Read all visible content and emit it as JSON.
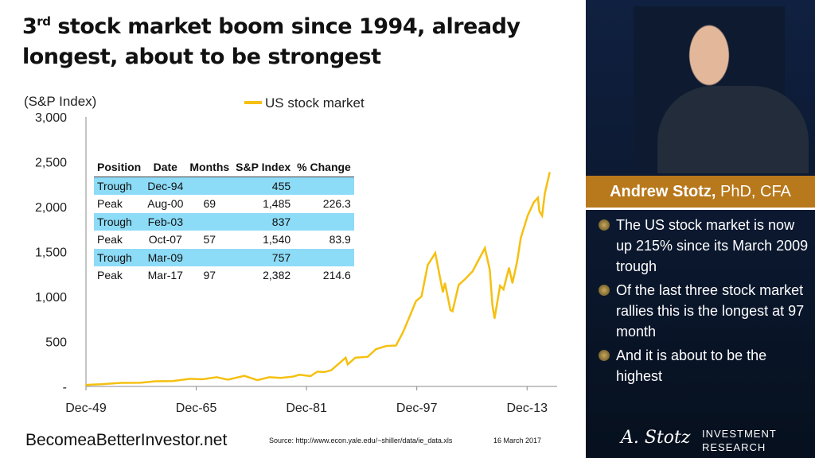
{
  "title": {
    "pre": "3",
    "sup": "rd",
    "rest": " stock market boom since 1994, already longest, about to be strongest"
  },
  "chart_data": {
    "type": "line",
    "ylabel": "(S&P Index)",
    "ylim": [
      0,
      3000
    ],
    "yticks": [
      "-",
      "500",
      "1,000",
      "1,500",
      "2,000",
      "2,500",
      "3,000"
    ],
    "xticks": [
      "Dec-49",
      "Dec-65",
      "Dec-81",
      "Dec-97",
      "Dec-13"
    ],
    "legend": "top-center",
    "color": "#f5c010",
    "series": [
      {
        "name": "US stock market",
        "x": [
          1949.9,
          1952,
          1955,
          1957.8,
          1960,
          1962.5,
          1965,
          1966.8,
          1968.9,
          1970.5,
          1972.9,
          1974.8,
          1976.5,
          1978.2,
          1980,
          1980.9,
          1982.5,
          1983.5,
          1984.5,
          1985.5,
          1987.6,
          1987.9,
          1989,
          1990.8,
          1992,
          1993.5,
          1994.9,
          1995.9,
          1997,
          1997.8,
          1998.6,
          1999.5,
          2000.6,
          2001.7,
          2002,
          2002.8,
          2003.1,
          2004,
          2005,
          2006,
          2007.8,
          2008.5,
          2008.9,
          2009.2,
          2010,
          2010.5,
          2011.3,
          2011.8,
          2012.5,
          2013,
          2014,
          2014.9,
          2015.5,
          2015.7,
          2016.1,
          2016.5,
          2017.2
        ],
        "y": [
          17,
          24,
          40,
          41,
          57,
          60,
          85,
          80,
          103,
          75,
          118,
          70,
          103,
          95,
          110,
          130,
          115,
          165,
          160,
          180,
          320,
          245,
          320,
          330,
          415,
          450,
          455,
          600,
          800,
          950,
          1000,
          1350,
          1485,
          1050,
          1150,
          850,
          837,
          1130,
          1200,
          1280,
          1540,
          1300,
          900,
          757,
          1120,
          1080,
          1320,
          1150,
          1400,
          1650,
          1900,
          2050,
          2100,
          1950,
          1900,
          2150,
          2382
        ]
      }
    ]
  },
  "legend_label": "US stock market",
  "table": {
    "headers": [
      "Position",
      "Date",
      "Months",
      "S&P Index",
      "% Change"
    ],
    "rows": [
      [
        "Trough",
        "Dec-94",
        "",
        "455",
        ""
      ],
      [
        "Peak",
        "Aug-00",
        "69",
        "1,485",
        "226.3"
      ],
      [
        "Trough",
        "Feb-03",
        "",
        "837",
        ""
      ],
      [
        "Peak",
        "Oct-07",
        "57",
        "1,540",
        "83.9"
      ],
      [
        "Trough",
        "Mar-09",
        "",
        "757",
        ""
      ],
      [
        "Peak",
        "Mar-17",
        "97",
        "2,382",
        "214.6"
      ]
    ]
  },
  "sidebar": {
    "name": "Andrew Stotz,",
    "credentials": " PhD, CFA",
    "bullets": [
      "The US stock market is now up 215% since its March 2009 trough",
      "Of the last three stock market rallies this is the longest at 97 month",
      "And it is about to be the highest"
    ],
    "logo": {
      "signature": "A. Stotz",
      "line1": "INVESTMENT",
      "line2": "RESEARCH"
    }
  },
  "footer": {
    "site": "BecomeaBetterInvestor.net",
    "source": "Source: http://www.econ.yale.edu/~shiller/data/ie_data.xls",
    "date": "16 March 2017"
  }
}
